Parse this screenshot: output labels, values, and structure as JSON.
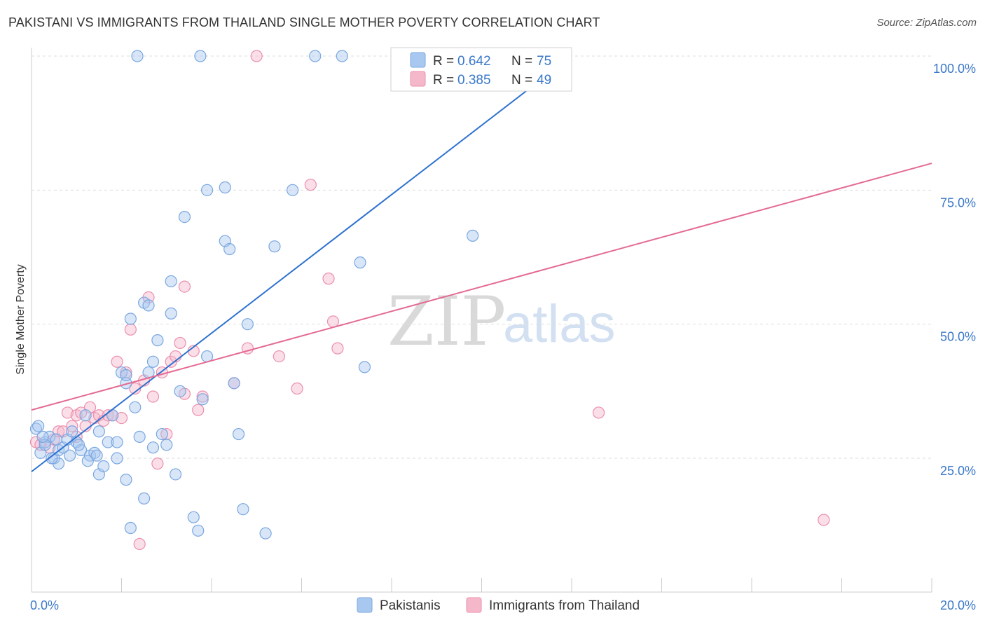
{
  "title": "PAKISTANI VS IMMIGRANTS FROM THAILAND SINGLE MOTHER POVERTY CORRELATION CHART",
  "source": "Source: ZipAtlas.com",
  "watermark": {
    "part1": "ZIP",
    "part2": "atlas"
  },
  "colors": {
    "blue_fill": "#a9c8f0",
    "blue_stroke": "#7aa7e0",
    "blue_line": "#2e72cf",
    "pink_fill": "#f5b8cb",
    "pink_stroke": "#ec8fad",
    "pink_line": "#e46a93",
    "tick_text": "#3a78c9",
    "grid": "#dddddd"
  },
  "chart_data": {
    "type": "scatter",
    "title": "PAKISTANI VS IMMIGRANTS FROM THAILAND SINGLE MOTHER POVERTY CORRELATION CHART",
    "xlabel": "",
    "ylabel": "Single Mother Poverty",
    "xlim": [
      0,
      20
    ],
    "ylim": [
      0,
      102
    ],
    "x_ticks": [
      "0.0%",
      "20.0%"
    ],
    "y_ticks": [
      {
        "value": 25,
        "label": "25.0%"
      },
      {
        "value": 50,
        "label": "50.0%"
      },
      {
        "value": 75,
        "label": "75.0%"
      },
      {
        "value": 100,
        "label": "100.0%"
      }
    ],
    "stats": [
      {
        "r_label": "R =",
        "r": "0.642",
        "n_label": "N =",
        "n": "75"
      },
      {
        "r_label": "R =",
        "r": "0.385",
        "n_label": "N =",
        "n": "49"
      }
    ],
    "series": [
      {
        "name": "Pakistanis",
        "color": "blue",
        "trend": {
          "x1": 0,
          "y1": 22.5,
          "x2": 12.0,
          "y2": 100
        },
        "points": [
          [
            0.1,
            30.5
          ],
          [
            0.2,
            26
          ],
          [
            0.3,
            28
          ],
          [
            0.4,
            29
          ],
          [
            0.5,
            25
          ],
          [
            0.6,
            24
          ],
          [
            0.6,
            26.5
          ],
          [
            0.7,
            27
          ],
          [
            0.8,
            28.5
          ],
          [
            0.9,
            30
          ],
          [
            1.0,
            28
          ],
          [
            1.1,
            26.5
          ],
          [
            1.2,
            33
          ],
          [
            1.3,
            25.5
          ],
          [
            1.4,
            26
          ],
          [
            1.5,
            22
          ],
          [
            1.5,
            30
          ],
          [
            1.6,
            23.5
          ],
          [
            1.7,
            28
          ],
          [
            1.8,
            33
          ],
          [
            1.9,
            25
          ],
          [
            1.9,
            28
          ],
          [
            2.0,
            41
          ],
          [
            2.1,
            39
          ],
          [
            2.1,
            40.5
          ],
          [
            2.1,
            21
          ],
          [
            2.2,
            51
          ],
          [
            2.2,
            12
          ],
          [
            2.3,
            34.5
          ],
          [
            2.4,
            29
          ],
          [
            2.5,
            17.5
          ],
          [
            2.5,
            54
          ],
          [
            2.6,
            41
          ],
          [
            2.7,
            43
          ],
          [
            2.7,
            27
          ],
          [
            2.8,
            47
          ],
          [
            2.9,
            29.5
          ],
          [
            3.1,
            58
          ],
          [
            3.1,
            52
          ],
          [
            3.2,
            22
          ],
          [
            3.3,
            37.5
          ],
          [
            3.4,
            70
          ],
          [
            3.6,
            14
          ],
          [
            3.7,
            11.5
          ],
          [
            3.8,
            36
          ],
          [
            3.9,
            44
          ],
          [
            3.9,
            75
          ],
          [
            4.3,
            75.5
          ],
          [
            4.3,
            65.5
          ],
          [
            4.4,
            64
          ],
          [
            4.5,
            39
          ],
          [
            4.6,
            29.5
          ],
          [
            4.7,
            15.5
          ],
          [
            4.8,
            50
          ],
          [
            5.2,
            11
          ],
          [
            5.4,
            64.5
          ],
          [
            5.8,
            75
          ],
          [
            7.3,
            61.5
          ],
          [
            7.4,
            42
          ],
          [
            9.8,
            66.5
          ],
          [
            2.35,
            100
          ],
          [
            3.75,
            100
          ],
          [
            6.3,
            100
          ],
          [
            6.9,
            100
          ],
          [
            0.15,
            31
          ],
          [
            0.3,
            27.5
          ],
          [
            0.45,
            25
          ],
          [
            0.85,
            25.5
          ],
          [
            1.25,
            24.5
          ],
          [
            1.45,
            25.5
          ],
          [
            0.25,
            29
          ],
          [
            0.55,
            28.5
          ],
          [
            1.05,
            27.5
          ],
          [
            2.6,
            53.5
          ],
          [
            3.0,
            27.5
          ]
        ]
      },
      {
        "name": "Immigrants from Thailand",
        "color": "pink",
        "trend": {
          "x1": 0,
          "y1": 34,
          "x2": 20,
          "y2": 80
        },
        "points": [
          [
            0.1,
            28
          ],
          [
            0.2,
            27.5
          ],
          [
            0.4,
            27
          ],
          [
            0.5,
            28.5
          ],
          [
            0.6,
            30
          ],
          [
            0.7,
            30
          ],
          [
            0.8,
            33.5
          ],
          [
            0.9,
            31
          ],
          [
            1.0,
            29
          ],
          [
            1.0,
            33
          ],
          [
            1.1,
            33.5
          ],
          [
            1.2,
            31
          ],
          [
            1.3,
            34.5
          ],
          [
            1.4,
            32.5
          ],
          [
            1.5,
            33
          ],
          [
            1.6,
            32
          ],
          [
            1.7,
            33
          ],
          [
            1.8,
            33
          ],
          [
            1.9,
            43
          ],
          [
            2.0,
            32.5
          ],
          [
            2.1,
            41
          ],
          [
            2.2,
            49
          ],
          [
            2.3,
            38
          ],
          [
            2.4,
            9
          ],
          [
            2.5,
            39.5
          ],
          [
            2.6,
            55
          ],
          [
            2.7,
            36.5
          ],
          [
            2.8,
            24
          ],
          [
            2.9,
            41
          ],
          [
            3.0,
            29.5
          ],
          [
            3.1,
            43
          ],
          [
            3.2,
            44
          ],
          [
            3.3,
            46.5
          ],
          [
            3.4,
            57
          ],
          [
            3.4,
            37
          ],
          [
            3.6,
            45
          ],
          [
            3.7,
            34
          ],
          [
            3.8,
            36.5
          ],
          [
            4.5,
            39
          ],
          [
            4.8,
            45.5
          ],
          [
            5.5,
            44
          ],
          [
            5.9,
            38
          ],
          [
            6.2,
            76
          ],
          [
            6.6,
            58.5
          ],
          [
            6.7,
            50.5
          ],
          [
            6.8,
            45.5
          ],
          [
            12.6,
            33.5
          ],
          [
            17.6,
            13.5
          ],
          [
            5.0,
            100
          ]
        ]
      }
    ]
  },
  "legend": {
    "items": [
      {
        "label": "Pakistanis"
      },
      {
        "label": "Immigrants from Thailand"
      }
    ]
  }
}
